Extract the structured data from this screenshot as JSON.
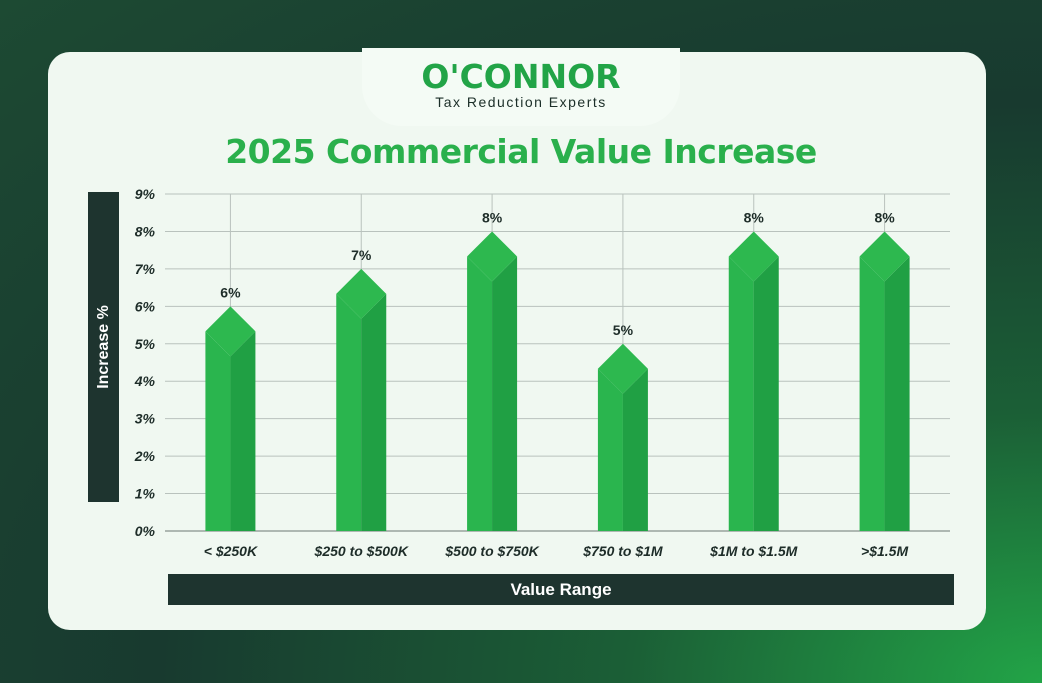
{
  "logo": {
    "name": "O'CONNOR",
    "tagline": "Tax Reduction Experts"
  },
  "chart_data": {
    "type": "bar",
    "title": "2025 Commercial Value Increase",
    "xlabel": "Value Range",
    "ylabel": "Increase %",
    "categories": [
      "< $250K",
      "$250 to $500K",
      "$500 to $750K",
      "$750 to $1M",
      "$1M to $1.5M",
      ">$1.5M"
    ],
    "values": [
      6,
      7,
      8,
      5,
      8,
      8
    ],
    "data_labels": [
      "6%",
      "7%",
      "8%",
      "5%",
      "8%",
      "8%"
    ],
    "ylim": [
      0,
      9
    ],
    "yticks": [
      "0%",
      "1%",
      "2%",
      "3%",
      "4%",
      "5%",
      "6%",
      "7%",
      "8%",
      "9%"
    ],
    "grid": true,
    "colors": {
      "bar_light": "#2ab54e",
      "bar_dark": "#20a044",
      "grid": "#b9c2bd",
      "text": "#1e2d29"
    }
  }
}
